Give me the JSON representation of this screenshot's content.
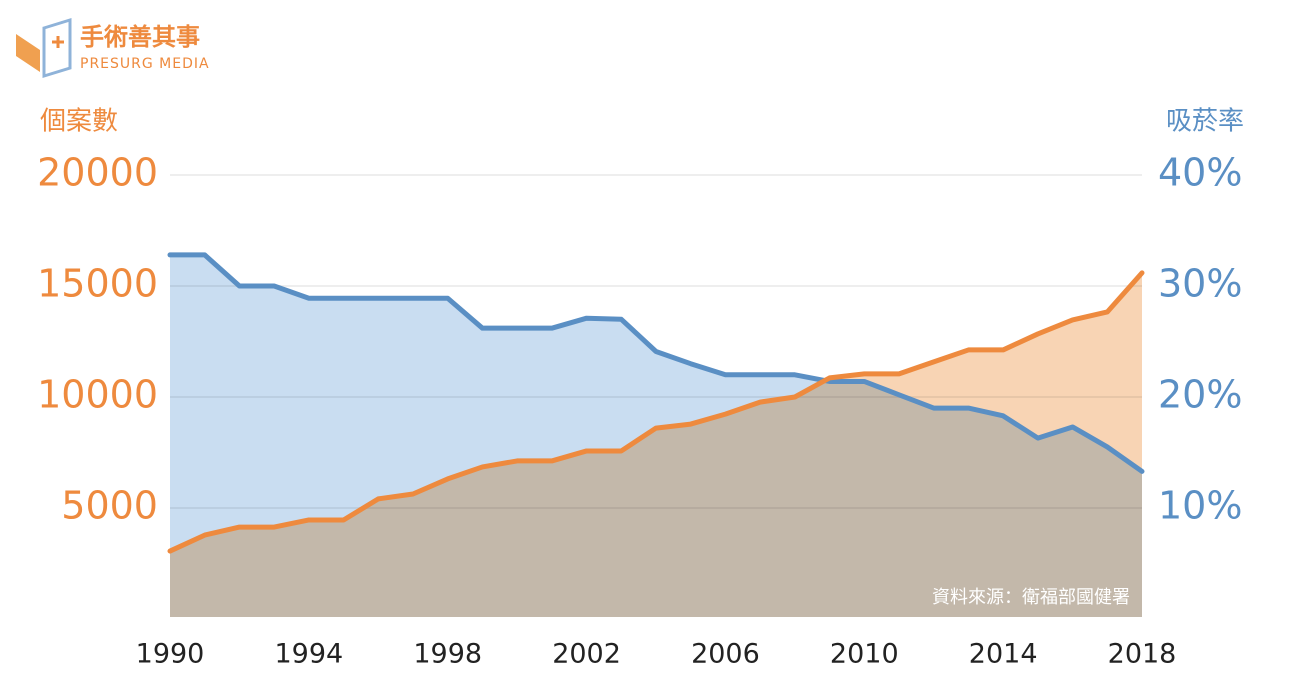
{
  "header": {
    "logo_title": "手術善其事",
    "logo_subtitle": "PRESURG MEDIA"
  },
  "chart_data": {
    "type": "line",
    "y_label": "個案數",
    "y2_label": "吸菸率",
    "source": "資料來源：衛福部國健署",
    "x": [
      1990,
      1991,
      1992,
      1993,
      1994,
      1995,
      1996,
      1997,
      1998,
      1999,
      2000,
      2001,
      2002,
      2003,
      2004,
      2005,
      2006,
      2007,
      2008,
      2009,
      2010,
      2011,
      2012,
      2013,
      2014,
      2015,
      2016,
      2017,
      2018
    ],
    "xlim": [
      1990,
      2018
    ],
    "xticks": [
      1990,
      1994,
      1998,
      2002,
      2006,
      2010,
      2014,
      2018
    ],
    "ylim": [
      0,
      20000
    ],
    "yticks": [
      5000,
      10000,
      15000,
      20000
    ],
    "y2lim": [
      0,
      40
    ],
    "y2ticks": [
      {
        "value": 10,
        "label": "10%"
      },
      {
        "value": 20,
        "label": "20%"
      },
      {
        "value": 30,
        "label": "30%"
      },
      {
        "value": 40,
        "label": "40%"
      }
    ],
    "grid": true,
    "series": [
      {
        "color": "#5a8fc4",
        "fill": "#c9ddf1",
        "axis": "y2",
        "values": [
          32.8,
          32.8,
          30.0,
          30.0,
          28.9,
          28.9,
          28.9,
          28.9,
          28.9,
          26.2,
          26.2,
          26.2,
          27.1,
          27.0,
          24.1,
          23.0,
          22.0,
          22.0,
          22.0,
          21.4,
          21.4,
          20.2,
          19.0,
          19.0,
          18.3,
          16.3,
          17.3,
          15.5,
          13.3
        ]
      },
      {
        "color": "#ee8a3e",
        "fill": "#f8d4b4",
        "values": [
          3060,
          3780,
          4140,
          4140,
          4460,
          4460,
          5410,
          5630,
          6310,
          6850,
          7120,
          7120,
          7570,
          7570,
          8600,
          8780,
          9230,
          9770,
          10000,
          10860,
          11040,
          11040,
          11580,
          12120,
          12120,
          12840,
          13470,
          13830,
          15590
        ]
      }
    ]
  }
}
